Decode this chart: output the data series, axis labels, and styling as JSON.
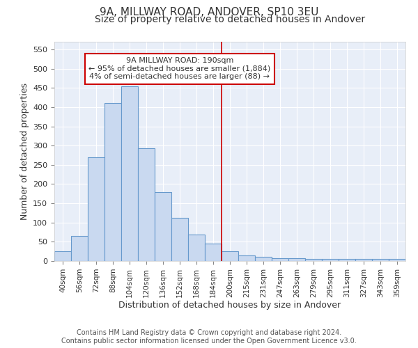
{
  "title1": "9A, MILLWAY ROAD, ANDOVER, SP10 3EU",
  "title2": "Size of property relative to detached houses in Andover",
  "xlabel": "Distribution of detached houses by size in Andover",
  "ylabel": "Number of detached properties",
  "bin_labels": [
    "40sqm",
    "56sqm",
    "72sqm",
    "88sqm",
    "104sqm",
    "120sqm",
    "136sqm",
    "152sqm",
    "168sqm",
    "184sqm",
    "200sqm",
    "215sqm",
    "231sqm",
    "247sqm",
    "263sqm",
    "279sqm",
    "295sqm",
    "311sqm",
    "327sqm",
    "343sqm",
    "359sqm"
  ],
  "bar_heights": [
    25,
    65,
    270,
    410,
    455,
    293,
    180,
    113,
    68,
    45,
    25,
    15,
    10,
    8,
    8,
    5,
    5,
    5,
    5,
    5,
    5
  ],
  "bar_color": "#c9d9f0",
  "bar_edge_color": "#6699cc",
  "ylim": [
    0,
    570
  ],
  "yticks": [
    0,
    50,
    100,
    150,
    200,
    250,
    300,
    350,
    400,
    450,
    500,
    550
  ],
  "red_line_x": 9.5,
  "annotation_line1": "9A MILLWAY ROAD: 190sqm",
  "annotation_line2": "← 95% of detached houses are smaller (1,884)",
  "annotation_line3": "4% of semi-detached houses are larger (88) →",
  "annotation_box_color": "#ffffff",
  "annotation_box_edge": "#cc0000",
  "footer1": "Contains HM Land Registry data © Crown copyright and database right 2024.",
  "footer2": "Contains public sector information licensed under the Open Government Licence v3.0.",
  "background_color": "#ffffff",
  "plot_bg_color": "#e8eef8",
  "grid_color": "#ffffff",
  "title1_fontsize": 11,
  "title2_fontsize": 10,
  "xlabel_fontsize": 9,
  "ylabel_fontsize": 9,
  "footer_fontsize": 7
}
